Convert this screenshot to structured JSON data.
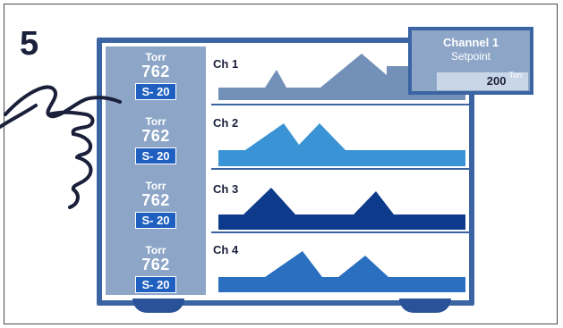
{
  "step_number": "5",
  "channels": [
    {
      "unit": "Torr",
      "value": "762",
      "badge": "S- 20",
      "name": "Ch 1",
      "color": "#7290b8"
    },
    {
      "unit": "Torr",
      "value": "762",
      "badge": "S- 20",
      "name": "Ch 2",
      "color": "#3a93d4"
    },
    {
      "unit": "Torr",
      "value": "762",
      "badge": "S- 20",
      "name": "Ch 3",
      "color": "#0d3a8a"
    },
    {
      "unit": "Torr",
      "value": "762",
      "badge": "S- 20",
      "name": "Ch 4",
      "color": "#2a6fc0"
    }
  ],
  "popup": {
    "title": "Channel 1",
    "subtitle": "Setpoint",
    "value": "200",
    "unit": "Torr"
  }
}
